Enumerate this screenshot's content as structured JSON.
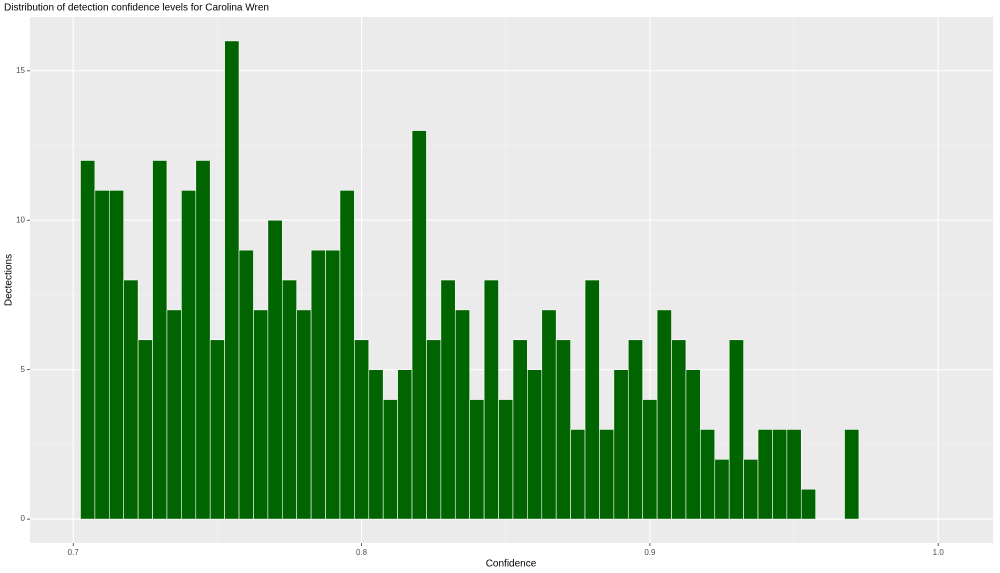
{
  "chart_data": {
    "type": "histogram",
    "title": "Distribution of detection confidence levels for Carolina Wren",
    "x_label": "Confidence",
    "y_label": "Dectections",
    "bins": [
      0.7025,
      0.7075,
      0.7125,
      0.7175,
      0.7225,
      0.7275,
      0.7325,
      0.7375,
      0.7425,
      0.7475,
      0.7525,
      0.7575,
      0.7625,
      0.7675,
      0.7725,
      0.7775,
      0.7825,
      0.7875,
      0.7925,
      0.7975,
      0.8025,
      0.8075,
      0.8125,
      0.8175,
      0.8225,
      0.8275,
      0.8325,
      0.8375,
      0.8425,
      0.8475,
      0.8525,
      0.8575,
      0.8625,
      0.8675,
      0.8725,
      0.8775,
      0.8825,
      0.8875,
      0.8925,
      0.8975,
      0.9025,
      0.9075,
      0.9125,
      0.9175,
      0.9225,
      0.9275,
      0.9325,
      0.9375,
      0.9425,
      0.9475,
      0.9525,
      0.9575,
      0.9625,
      0.9675,
      0.9725
    ],
    "values": [
      12,
      11,
      11,
      8,
      6,
      12,
      7,
      11,
      12,
      6,
      16,
      9,
      7,
      10,
      8,
      7,
      9,
      9,
      11,
      6,
      5,
      4,
      5,
      13,
      6,
      8,
      7,
      4,
      8,
      4,
      6,
      5,
      7,
      6,
      3,
      8,
      3,
      5,
      6,
      4,
      7,
      6,
      5,
      3,
      2,
      6,
      2,
      3,
      3,
      3,
      1,
      0,
      0,
      3
    ],
    "color": "#006400",
    "xlim": [
      0.685,
      1.019
    ],
    "xticks": [
      0.7,
      0.8,
      0.9,
      {
        "value": 1,
        "label": "1.0"
      }
    ],
    "ylim": [
      -0.8,
      16.8
    ],
    "yticks": [
      0,
      5,
      10,
      15
    ],
    "grid": true
  }
}
